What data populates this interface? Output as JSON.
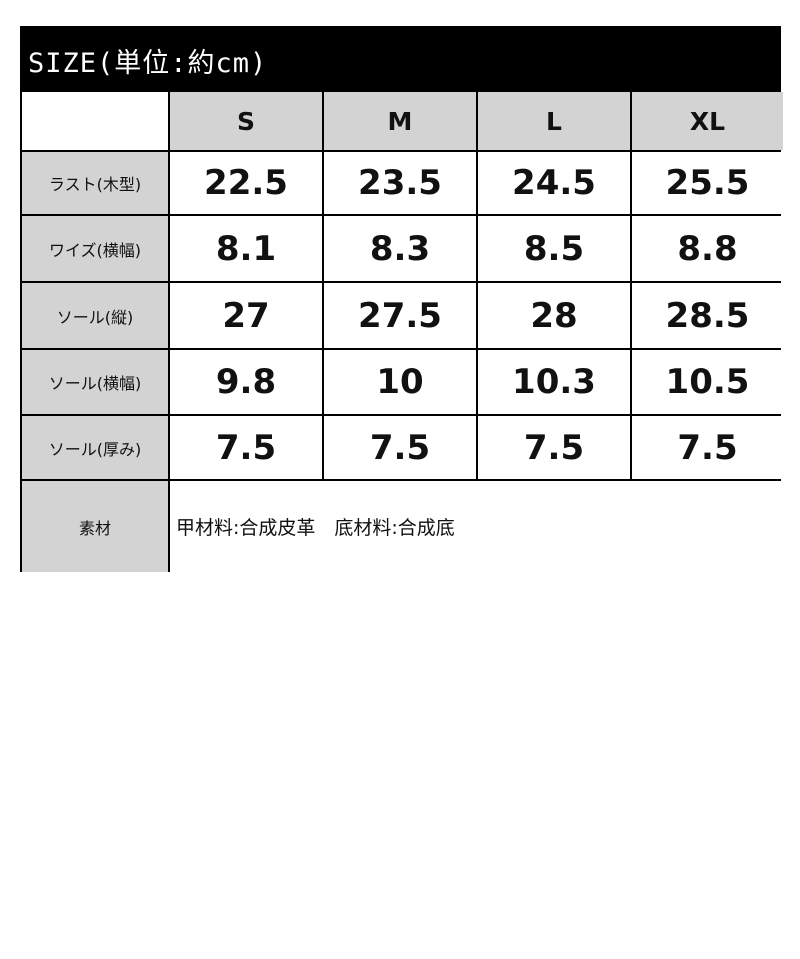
{
  "title": "SIZE(単位:約cm)",
  "sizes": [
    "S",
    "M",
    "L",
    "XL"
  ],
  "rows": [
    {
      "label": "ラスト(木型)",
      "values": [
        "22.5",
        "23.5",
        "24.5",
        "25.5"
      ]
    },
    {
      "label": "ワイズ(横幅)",
      "values": [
        "8.1",
        "8.3",
        "8.5",
        "8.8"
      ]
    },
    {
      "label": "ソール(縦)",
      "values": [
        "27",
        "27.5",
        "28",
        "28.5"
      ]
    },
    {
      "label": "ソール(横幅)",
      "values": [
        "9.8",
        "10",
        "10.3",
        "10.5"
      ]
    },
    {
      "label": "ソール(厚み)",
      "values": [
        "7.5",
        "7.5",
        "7.5",
        "7.5"
      ]
    }
  ],
  "material": {
    "label": "素材",
    "value": "甲材料:合成皮革　底材料:合成底"
  }
}
